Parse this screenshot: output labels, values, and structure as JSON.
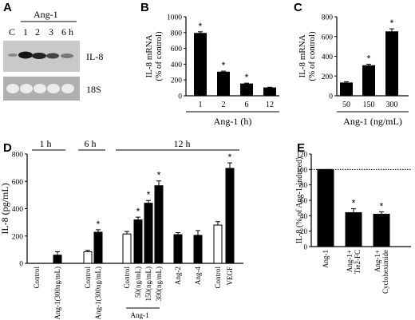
{
  "panels": {
    "A": {
      "letter": "A",
      "treatment": "Ang-1",
      "lanes": [
        "C",
        "1",
        "2",
        "3",
        "6 h"
      ],
      "band_labels": [
        "IL-8",
        "18S"
      ]
    },
    "B": {
      "letter": "B"
    },
    "C": {
      "letter": "C"
    },
    "D": {
      "letter": "D",
      "time_groups": [
        "1 h",
        "6 h",
        "12 h"
      ],
      "bracket_label": "Ang-1"
    },
    "E": {
      "letter": "E"
    }
  },
  "chart_data": [
    {
      "panel": "B",
      "type": "bar",
      "xlabel": "Ang-1 (h)",
      "ylabel": "IL-8 mRNA\n(% of control)",
      "ylim": [
        0,
        1000
      ],
      "yticks": [
        0,
        200,
        400,
        600,
        800,
        1000
      ],
      "categories": [
        "1",
        "2",
        "6",
        "12"
      ],
      "values": [
        790,
        300,
        150,
        100
      ],
      "errors": [
        20,
        12,
        10,
        8
      ],
      "significant": [
        true,
        true,
        true,
        false
      ],
      "bar_color": "#000000"
    },
    {
      "panel": "C",
      "type": "bar",
      "xlabel": "Ang-1 (ng/mL)",
      "ylabel": "IL-8 mRNA\n(% of control)",
      "ylim": [
        0,
        800
      ],
      "yticks": [
        0,
        200,
        400,
        600,
        800
      ],
      "categories": [
        "50",
        "150",
        "300"
      ],
      "values": [
        130,
        305,
        648
      ],
      "errors": [
        12,
        15,
        30
      ],
      "significant": [
        false,
        true,
        true
      ],
      "bar_color": "#000000"
    },
    {
      "panel": "D",
      "type": "bar",
      "ylabel": "IL-8 (pg/mL)",
      "ylim": [
        0,
        800
      ],
      "yticks": [
        0,
        200,
        400,
        600,
        800
      ],
      "categories": [
        "Control",
        "Ang-1(300ng/mL)",
        "Control",
        "Ang-1(300ng/mL)",
        "Control",
        "50(ng/mL)",
        "150(ng/mL)",
        "300(ng/mL)",
        "Ang-2",
        "Ang-4",
        "Control",
        "VEGF"
      ],
      "values": [
        0,
        60,
        85,
        228,
        215,
        318,
        440,
        568,
        210,
        205,
        280,
        695
      ],
      "errors": [
        0,
        25,
        10,
        18,
        18,
        20,
        20,
        35,
        15,
        35,
        25,
        40
      ],
      "fill": [
        "black",
        "black",
        "white",
        "black",
        "white",
        "black",
        "black",
        "black",
        "black",
        "black",
        "white",
        "black"
      ],
      "significant": [
        false,
        false,
        false,
        true,
        false,
        true,
        true,
        true,
        false,
        false,
        false,
        true
      ]
    },
    {
      "panel": "E",
      "type": "bar",
      "ylabel": "IL-8 (% of Ang-1-induced)",
      "ylim": [
        0,
        120
      ],
      "yticks": [
        0,
        20,
        40,
        60,
        80,
        100,
        120
      ],
      "reference_line": 100,
      "categories": [
        "Ang-1",
        "Ang-1+\nTie2-FC",
        "Ang-1+\nCycloheximide"
      ],
      "values": [
        100,
        44,
        42
      ],
      "errors": [
        0,
        5,
        3
      ],
      "significant": [
        false,
        true,
        true
      ],
      "bar_color": "#000000"
    }
  ]
}
